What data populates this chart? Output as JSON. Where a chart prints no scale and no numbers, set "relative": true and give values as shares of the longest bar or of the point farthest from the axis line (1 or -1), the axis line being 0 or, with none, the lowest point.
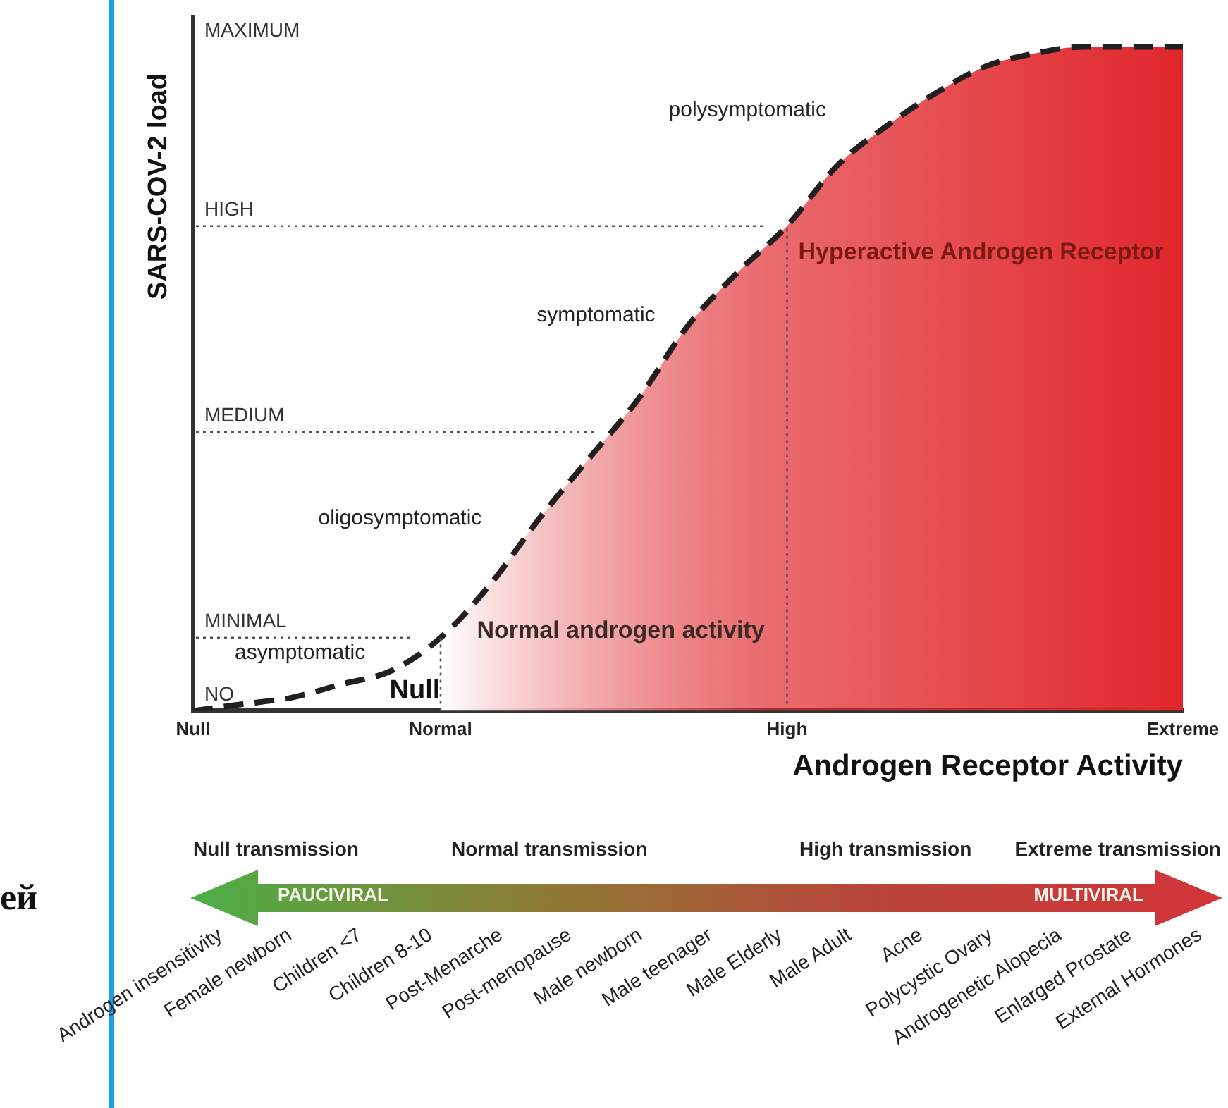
{
  "chart_data": {
    "type": "line",
    "xlabel": "Androgen Receptor Activity",
    "ylabel": "SARS-COV-2 load",
    "relative": true,
    "categories": [
      "Null",
      null,
      null,
      null,
      null,
      "Normal",
      null,
      null,
      null,
      null,
      null,
      null,
      "High",
      null,
      null,
      null,
      null,
      null,
      null,
      null,
      "Extreme"
    ],
    "grid": false,
    "legend": false,
    "marker": "none",
    "series": [
      {
        "type": "area",
        "color": "#e0262b",
        "values": [
          null,
          null,
          null,
          null,
          null,
          0.11,
          0.19,
          0.29,
          0.38,
          0.47,
          0.58,
          0.66,
          0.73,
          0.82,
          0.88,
          0.93,
          0.97,
          0.99,
          1,
          1,
          1
        ]
      },
      {
        "color": "#231f20",
        "line_style": "dashed",
        "values": [
          0,
          0.01,
          0.02,
          0.04,
          0.06,
          0.11,
          0.19,
          0.29,
          0.38,
          0.47,
          0.58,
          0.66,
          0.73,
          0.82,
          0.88,
          0.93,
          0.97,
          0.99,
          1,
          1,
          1
        ]
      }
    ],
    "ref_lines": [
      {
        "axis": "y",
        "value": 0.11,
        "label": "MINIMAL",
        "line_style": "dotted",
        "color": "#555555"
      },
      {
        "axis": "y",
        "value": 0.42,
        "label": "MEDIUM",
        "line_style": "dotted",
        "color": "#555555"
      },
      {
        "axis": "y",
        "value": 0.73,
        "label": "HIGH",
        "line_style": "dotted",
        "color": "#555555"
      },
      {
        "axis": "x",
        "value": "Normal",
        "line_style": "dotted",
        "color": "#555555"
      },
      {
        "axis": "x",
        "value": "High",
        "line_style": "dotted",
        "color": "#555555"
      }
    ],
    "annotations": [
      "NO",
      "MAXIMUM",
      "polysymptomatic",
      "symptomatic",
      "oligosymptomatic",
      "asymptomatic",
      "Null",
      "Normal androgen activity",
      "Hyperactive Androgen Receptor",
      "Null transmission",
      "Normal transmission",
      "High transmission",
      "Extreme transmission",
      "PAUCIVIRAL",
      "MULTIVIRAL",
      "Androgen insensitivity",
      "Female newborn",
      "Children <7",
      "Children 8-10",
      "Post-Menarche",
      "Post-menopause",
      "Male newborn",
      "Male teenager",
      "Male Elderly",
      "Male Adult",
      "Acne",
      "Polycystic Ovary",
      "Androgenetic Alopecia",
      "Enlarged Prostate",
      "External Hormones",
      "ей"
    ]
  }
}
